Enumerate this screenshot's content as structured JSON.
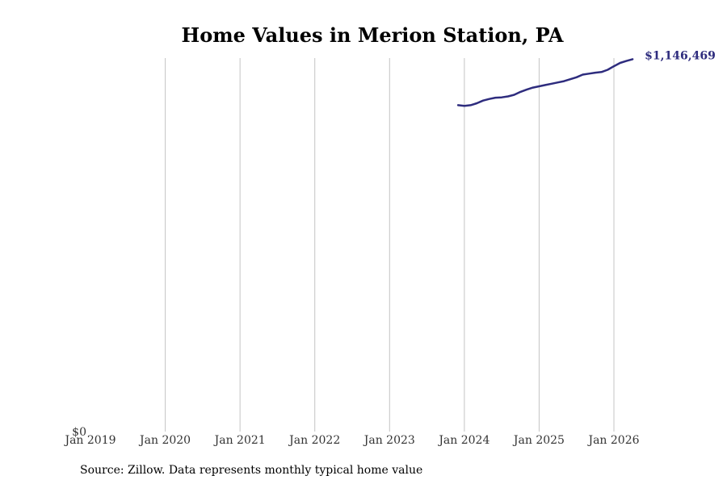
{
  "chart_data": {
    "type": "line",
    "title": "Home Values in Merion Station, PA",
    "source": "Source: Zillow. Data represents monthly typical home value",
    "y_tick_label": "$0",
    "end_value_label": "$1,146,469",
    "x_ticks": [
      "Jan 2019",
      "Jan 2020",
      "Jan 2021",
      "Jan 2022",
      "Jan 2023",
      "Jan 2024",
      "Jan 2025",
      "Jan 2026"
    ],
    "grid": "vertical",
    "ylim": [
      0,
      1150000
    ],
    "series": [
      {
        "color": "#2e2c7e",
        "points": [
          [
            "2023-12",
            1005000
          ],
          [
            "2024-01",
            1003000
          ],
          [
            "2024-02",
            1005000
          ],
          [
            "2024-03",
            1011000
          ],
          [
            "2024-04",
            1019000
          ],
          [
            "2024-05",
            1024000
          ],
          [
            "2024-06",
            1028000
          ],
          [
            "2024-07",
            1029000
          ],
          [
            "2024-08",
            1032000
          ],
          [
            "2024-09",
            1037000
          ],
          [
            "2024-10",
            1046000
          ],
          [
            "2024-11",
            1053000
          ],
          [
            "2024-12",
            1059000
          ],
          [
            "2025-01",
            1063000
          ],
          [
            "2025-02",
            1067000
          ],
          [
            "2025-03",
            1071000
          ],
          [
            "2025-04",
            1075000
          ],
          [
            "2025-05",
            1079000
          ],
          [
            "2025-06",
            1085000
          ],
          [
            "2025-07",
            1091000
          ],
          [
            "2025-08",
            1099000
          ],
          [
            "2025-09",
            1102000
          ],
          [
            "2025-10",
            1105000
          ],
          [
            "2025-11",
            1107000
          ],
          [
            "2025-12",
            1114000
          ],
          [
            "2026-01",
            1125000
          ],
          [
            "2026-02",
            1135000
          ],
          [
            "2026-03",
            1141000
          ],
          [
            "2026-04",
            1146469
          ]
        ]
      }
    ]
  }
}
